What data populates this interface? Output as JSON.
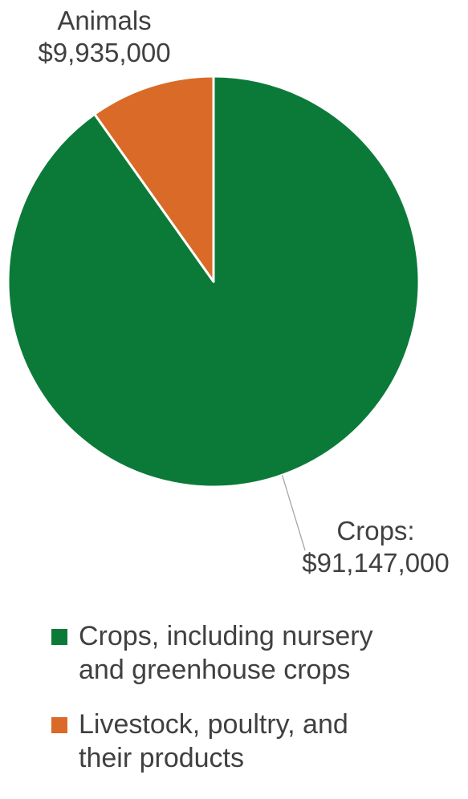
{
  "chart_data": {
    "type": "pie",
    "title": "",
    "slices": [
      {
        "name": "Crops, including nursery and greenhouse crops",
        "value": 91147000,
        "label_line1": "Crops:",
        "label_line2": "$91,147,000",
        "color": "#0b7a38"
      },
      {
        "name": "Livestock, poultry, and their products",
        "value": 9935000,
        "label_line1": "Animals",
        "label_line2": "$9,935,000",
        "color": "#d96a28"
      }
    ],
    "legend": {
      "placement": "bottom",
      "items": [
        "Crops, including nursery\nand greenhouse crops",
        "Livestock, poultry, and\ntheir products"
      ]
    }
  }
}
